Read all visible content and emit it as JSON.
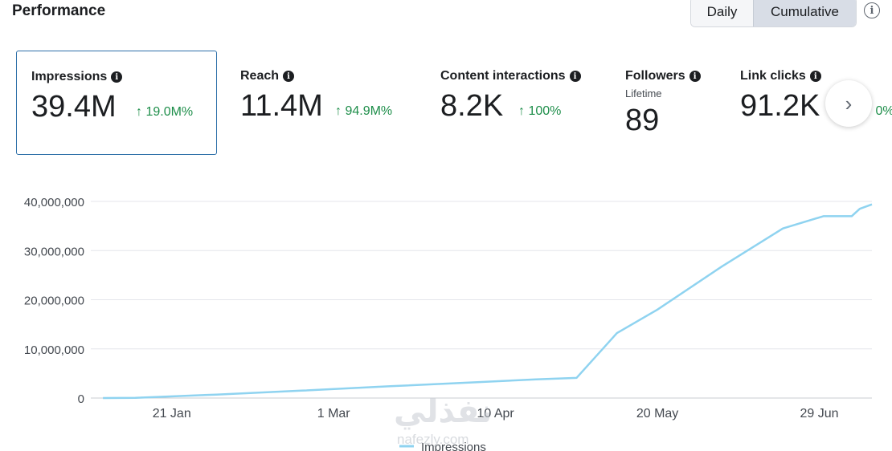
{
  "header": {
    "title": "Performance",
    "toggle": {
      "daily": "Daily",
      "cumulative": "Cumulative",
      "selected": "Cumulative"
    },
    "info_icon": "info-icon"
  },
  "metrics": [
    {
      "label": "Impressions",
      "value": "39.4M",
      "change": "19.0M%",
      "selected": true
    },
    {
      "label": "Reach",
      "value": "11.4M",
      "change": "94.9M%"
    },
    {
      "label": "Content interactions",
      "value": "8.2K",
      "change": "100%"
    },
    {
      "label": "Followers",
      "sub": "Lifetime",
      "value": "89"
    },
    {
      "label": "Link clicks",
      "value": "91.2K",
      "change": "0%"
    }
  ],
  "next_icon": "chevron-right-icon",
  "chart_data": {
    "type": "line",
    "series": [
      {
        "name": "Impressions",
        "color": "#8fd3f0",
        "x": [
          "2024-01-04",
          "2024-01-12",
          "2024-02-01",
          "2024-02-22",
          "2024-03-15",
          "2024-04-05",
          "2024-04-20",
          "2024-04-30",
          "2024-05-10",
          "2024-05-20",
          "2024-06-05",
          "2024-06-20",
          "2024-06-30",
          "2024-07-07",
          "2024-07-09",
          "2024-07-12"
        ],
        "values": [
          0,
          50000,
          700000,
          1500000,
          2400000,
          3200000,
          3800000,
          4100000,
          13200000,
          18000000,
          26800000,
          34500000,
          37000000,
          37000000,
          38500000,
          39400000
        ]
      }
    ],
    "y_ticks": [
      "40,000,000",
      "30,000,000",
      "20,000,000",
      "10,000,000",
      "0"
    ],
    "x_ticks": [
      "21 Jan",
      "1 Mar",
      "10 Apr",
      "20 May",
      "29 Jun"
    ],
    "ylim": [
      0,
      40000000
    ],
    "xlim": [
      "2024-01-01",
      "2024-07-12"
    ],
    "grid": true,
    "legend": "bottom"
  },
  "watermark": {
    "text": "نفذلي",
    "sub": "nafezly.com"
  }
}
